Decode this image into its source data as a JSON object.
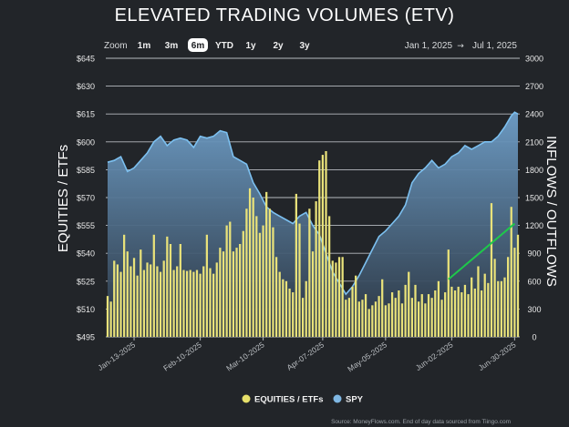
{
  "chart_data": {
    "type": "bar+area",
    "title": "ELEVATED TRADING VOLUMES (ETV)",
    "ylabel_left": "EQUITIES / ETFs",
    "ylabel_right": "INFLOWS / OUTFLOWS",
    "y_left_ticks": [
      "$645",
      "$630",
      "$615",
      "$600",
      "$585",
      "$570",
      "$555",
      "$540",
      "$525",
      "$510",
      "$495"
    ],
    "y_left_range": [
      495,
      645
    ],
    "y_right_ticks": [
      "3000",
      "2700",
      "2400",
      "2100",
      "1800",
      "1500",
      "1200",
      "900",
      "600",
      "300",
      "0"
    ],
    "y_right_range": [
      0,
      3000
    ],
    "x_ticks": [
      {
        "label": "Jan-13-2025",
        "day": 8
      },
      {
        "label": "Feb-10-2025",
        "day": 28
      },
      {
        "label": "Mar-10-2025",
        "day": 47
      },
      {
        "label": "Apr-07-2025",
        "day": 65
      },
      {
        "label": "May-05-2025",
        "day": 84
      },
      {
        "label": "Jun-02-2025",
        "day": 104
      },
      {
        "label": "Jun-30-2025",
        "day": 123
      }
    ],
    "x_range": [
      0,
      124
    ],
    "spy_series": [
      {
        "d": 0,
        "v": 589
      },
      {
        "d": 2,
        "v": 590
      },
      {
        "d": 4,
        "v": 592
      },
      {
        "d": 6,
        "v": 584
      },
      {
        "d": 8,
        "v": 586
      },
      {
        "d": 10,
        "v": 590
      },
      {
        "d": 12,
        "v": 594
      },
      {
        "d": 14,
        "v": 600
      },
      {
        "d": 16,
        "v": 603
      },
      {
        "d": 18,
        "v": 598
      },
      {
        "d": 20,
        "v": 601
      },
      {
        "d": 22,
        "v": 602
      },
      {
        "d": 24,
        "v": 601
      },
      {
        "d": 26,
        "v": 597
      },
      {
        "d": 28,
        "v": 603
      },
      {
        "d": 30,
        "v": 602
      },
      {
        "d": 32,
        "v": 603
      },
      {
        "d": 34,
        "v": 606
      },
      {
        "d": 36,
        "v": 605
      },
      {
        "d": 38,
        "v": 592
      },
      {
        "d": 40,
        "v": 590
      },
      {
        "d": 42,
        "v": 588
      },
      {
        "d": 44,
        "v": 578
      },
      {
        "d": 46,
        "v": 572
      },
      {
        "d": 48,
        "v": 565
      },
      {
        "d": 50,
        "v": 562
      },
      {
        "d": 52,
        "v": 560
      },
      {
        "d": 54,
        "v": 558
      },
      {
        "d": 56,
        "v": 556
      },
      {
        "d": 58,
        "v": 560
      },
      {
        "d": 60,
        "v": 562
      },
      {
        "d": 62,
        "v": 555
      },
      {
        "d": 64,
        "v": 550
      },
      {
        "d": 66,
        "v": 540
      },
      {
        "d": 68,
        "v": 530
      },
      {
        "d": 70,
        "v": 524
      },
      {
        "d": 72,
        "v": 518
      },
      {
        "d": 74,
        "v": 522
      },
      {
        "d": 76,
        "v": 528
      },
      {
        "d": 78,
        "v": 535
      },
      {
        "d": 80,
        "v": 542
      },
      {
        "d": 82,
        "v": 549
      },
      {
        "d": 84,
        "v": 552
      },
      {
        "d": 86,
        "v": 556
      },
      {
        "d": 88,
        "v": 560
      },
      {
        "d": 90,
        "v": 566
      },
      {
        "d": 92,
        "v": 578
      },
      {
        "d": 94,
        "v": 583
      },
      {
        "d": 96,
        "v": 586
      },
      {
        "d": 98,
        "v": 590
      },
      {
        "d": 100,
        "v": 586
      },
      {
        "d": 102,
        "v": 588
      },
      {
        "d": 104,
        "v": 592
      },
      {
        "d": 106,
        "v": 594
      },
      {
        "d": 108,
        "v": 598
      },
      {
        "d": 110,
        "v": 596
      },
      {
        "d": 112,
        "v": 598
      },
      {
        "d": 114,
        "v": 600
      },
      {
        "d": 116,
        "v": 600
      },
      {
        "d": 118,
        "v": 603
      },
      {
        "d": 120,
        "v": 608
      },
      {
        "d": 122,
        "v": 614
      },
      {
        "d": 123,
        "v": 616
      },
      {
        "d": 124,
        "v": 615
      }
    ],
    "volume_bars": [
      {
        "d": 0,
        "v": 440
      },
      {
        "d": 1,
        "v": 380
      },
      {
        "d": 2,
        "v": 820
      },
      {
        "d": 3,
        "v": 780
      },
      {
        "d": 4,
        "v": 700
      },
      {
        "d": 5,
        "v": 1100
      },
      {
        "d": 6,
        "v": 920
      },
      {
        "d": 7,
        "v": 760
      },
      {
        "d": 8,
        "v": 850
      },
      {
        "d": 9,
        "v": 660
      },
      {
        "d": 10,
        "v": 940
      },
      {
        "d": 11,
        "v": 720
      },
      {
        "d": 12,
        "v": 800
      },
      {
        "d": 13,
        "v": 780
      },
      {
        "d": 14,
        "v": 1100
      },
      {
        "d": 15,
        "v": 760
      },
      {
        "d": 16,
        "v": 700
      },
      {
        "d": 17,
        "v": 820
      },
      {
        "d": 18,
        "v": 1080
      },
      {
        "d": 19,
        "v": 1000
      },
      {
        "d": 20,
        "v": 720
      },
      {
        "d": 21,
        "v": 760
      },
      {
        "d": 22,
        "v": 1000
      },
      {
        "d": 23,
        "v": 720
      },
      {
        "d": 24,
        "v": 710
      },
      {
        "d": 25,
        "v": 720
      },
      {
        "d": 26,
        "v": 700
      },
      {
        "d": 27,
        "v": 720
      },
      {
        "d": 28,
        "v": 680
      },
      {
        "d": 29,
        "v": 760
      },
      {
        "d": 30,
        "v": 1100
      },
      {
        "d": 31,
        "v": 740
      },
      {
        "d": 32,
        "v": 680
      },
      {
        "d": 33,
        "v": 800
      },
      {
        "d": 34,
        "v": 960
      },
      {
        "d": 35,
        "v": 920
      },
      {
        "d": 36,
        "v": 1200
      },
      {
        "d": 37,
        "v": 1240
      },
      {
        "d": 38,
        "v": 920
      },
      {
        "d": 39,
        "v": 960
      },
      {
        "d": 40,
        "v": 1000
      },
      {
        "d": 41,
        "v": 1140
      },
      {
        "d": 42,
        "v": 1380
      },
      {
        "d": 43,
        "v": 1600
      },
      {
        "d": 44,
        "v": 1500
      },
      {
        "d": 45,
        "v": 1300
      },
      {
        "d": 46,
        "v": 1120
      },
      {
        "d": 47,
        "v": 1200
      },
      {
        "d": 48,
        "v": 1560
      },
      {
        "d": 49,
        "v": 1380
      },
      {
        "d": 50,
        "v": 1180
      },
      {
        "d": 51,
        "v": 860
      },
      {
        "d": 52,
        "v": 700
      },
      {
        "d": 53,
        "v": 620
      },
      {
        "d": 54,
        "v": 600
      },
      {
        "d": 55,
        "v": 520
      },
      {
        "d": 56,
        "v": 480
      },
      {
        "d": 57,
        "v": 1540
      },
      {
        "d": 58,
        "v": 1220
      },
      {
        "d": 59,
        "v": 420
      },
      {
        "d": 60,
        "v": 600
      },
      {
        "d": 61,
        "v": 1380
      },
      {
        "d": 62,
        "v": 920
      },
      {
        "d": 63,
        "v": 1460
      },
      {
        "d": 64,
        "v": 1900
      },
      {
        "d": 65,
        "v": 1960
      },
      {
        "d": 66,
        "v": 2000
      },
      {
        "d": 67,
        "v": 1300
      },
      {
        "d": 68,
        "v": 820
      },
      {
        "d": 69,
        "v": 800
      },
      {
        "d": 70,
        "v": 860
      },
      {
        "d": 71,
        "v": 860
      },
      {
        "d": 72,
        "v": 400
      },
      {
        "d": 73,
        "v": 420
      },
      {
        "d": 74,
        "v": 540
      },
      {
        "d": 75,
        "v": 660
      },
      {
        "d": 76,
        "v": 380
      },
      {
        "d": 77,
        "v": 400
      },
      {
        "d": 78,
        "v": 460
      },
      {
        "d": 79,
        "v": 300
      },
      {
        "d": 80,
        "v": 340
      },
      {
        "d": 81,
        "v": 380
      },
      {
        "d": 82,
        "v": 440
      },
      {
        "d": 83,
        "v": 620
      },
      {
        "d": 84,
        "v": 340
      },
      {
        "d": 85,
        "v": 360
      },
      {
        "d": 86,
        "v": 480
      },
      {
        "d": 87,
        "v": 420
      },
      {
        "d": 88,
        "v": 500
      },
      {
        "d": 89,
        "v": 360
      },
      {
        "d": 90,
        "v": 560
      },
      {
        "d": 91,
        "v": 700
      },
      {
        "d": 92,
        "v": 420
      },
      {
        "d": 93,
        "v": 560
      },
      {
        "d": 94,
        "v": 380
      },
      {
        "d": 95,
        "v": 460
      },
      {
        "d": 96,
        "v": 360
      },
      {
        "d": 97,
        "v": 460
      },
      {
        "d": 98,
        "v": 420
      },
      {
        "d": 99,
        "v": 500
      },
      {
        "d": 100,
        "v": 600
      },
      {
        "d": 101,
        "v": 400
      },
      {
        "d": 102,
        "v": 480
      },
      {
        "d": 103,
        "v": 940
      },
      {
        "d": 104,
        "v": 540
      },
      {
        "d": 105,
        "v": 500
      },
      {
        "d": 106,
        "v": 540
      },
      {
        "d": 107,
        "v": 480
      },
      {
        "d": 108,
        "v": 560
      },
      {
        "d": 109,
        "v": 460
      },
      {
        "d": 110,
        "v": 640
      },
      {
        "d": 111,
        "v": 520
      },
      {
        "d": 112,
        "v": 760
      },
      {
        "d": 113,
        "v": 500
      },
      {
        "d": 114,
        "v": 680
      },
      {
        "d": 115,
        "v": 580
      },
      {
        "d": 116,
        "v": 1440
      },
      {
        "d": 117,
        "v": 840
      },
      {
        "d": 118,
        "v": 600
      },
      {
        "d": 119,
        "v": 600
      },
      {
        "d": 120,
        "v": 640
      },
      {
        "d": 121,
        "v": 860
      },
      {
        "d": 122,
        "v": 1400
      },
      {
        "d": 123,
        "v": 960
      },
      {
        "d": 124,
        "v": 1100
      }
    ],
    "trendline": {
      "from": {
        "d": 103,
        "v": 620
      },
      "to": {
        "d": 123,
        "v": 1220
      }
    },
    "legend": [
      {
        "name": "EQUITIES / ETFs",
        "color": "#e7e06a"
      },
      {
        "name": "SPY",
        "color": "#7fb7e3"
      }
    ],
    "legend_position": "bottom-center",
    "colors": {
      "bar": "#e9e27a",
      "spy_line": "#7cc0f0",
      "spy_fill_top": "#6f9fc9",
      "spy_fill_bottom": "#2a3440",
      "trend": "#1ec94a",
      "grid": "#c8ccd0"
    }
  },
  "zoom": {
    "label": "Zoom",
    "buttons": [
      {
        "label": "1m",
        "active": false
      },
      {
        "label": "3m",
        "active": false
      },
      {
        "label": "6m",
        "active": true
      },
      {
        "label": "YTD",
        "active": false
      },
      {
        "label": "1y",
        "active": false
      },
      {
        "label": "2y",
        "active": false
      },
      {
        "label": "3y",
        "active": false
      }
    ]
  },
  "date_range": {
    "start": "Jan 1, 2025",
    "arrow": "→",
    "end": "Jul 1, 2025"
  },
  "source_note": "Source: MoneyFlows.com. End of day data sourced from Tiingo.com"
}
